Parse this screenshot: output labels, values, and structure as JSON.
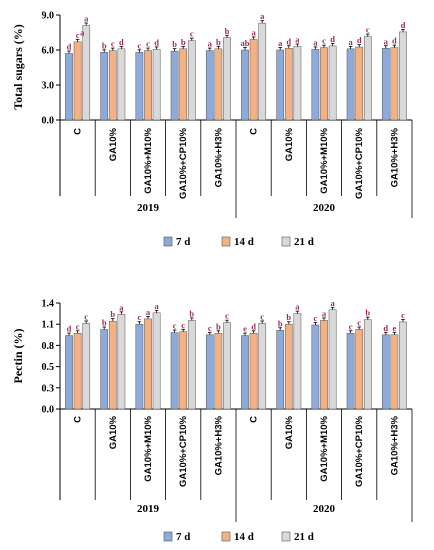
{
  "colors": {
    "7 d": "#8eaadb",
    "14 d": "#f4b183",
    "21 d": "#d9d9d9",
    "letters": "#a0285a"
  },
  "chart_data": [
    {
      "type": "bar",
      "ylabel": "Total sugars (%)",
      "ylim": [
        0,
        9
      ],
      "yticks": [
        "0.0",
        "3.0",
        "6.0",
        "9.0"
      ],
      "tick_values": [
        0,
        3,
        6,
        9
      ],
      "legend": [
        "7 d",
        "14 d",
        "21 d"
      ],
      "legend_position": "bottom",
      "groups": [
        {
          "year": "2019",
          "categories": [
            "C",
            "GA10%",
            "GA10%+M10%",
            "GA10%+CP10%",
            "GA10%+H3%"
          ]
        },
        {
          "year": "2020",
          "categories": [
            "C",
            "GA10%",
            "GA10%+M10%",
            "GA10%+CP10%",
            "GA10%+H3%"
          ]
        }
      ],
      "series": [
        {
          "name": "7 d",
          "values": [
            5.7,
            5.8,
            5.8,
            5.9,
            5.95,
            6.0,
            6.0,
            6.05,
            6.1,
            6.15
          ],
          "letters": [
            "d",
            "b",
            "c",
            "b",
            "a",
            "ab",
            "a",
            "a",
            "a",
            "a"
          ]
        },
        {
          "name": "14 d",
          "values": [
            6.7,
            5.95,
            5.95,
            6.1,
            6.1,
            6.9,
            6.15,
            6.2,
            6.25,
            6.2
          ],
          "letters": [
            "c",
            "c",
            "c",
            "b",
            "b",
            "a",
            "d",
            "c",
            "d",
            "d"
          ]
        },
        {
          "name": "21 d",
          "values": [
            8.1,
            6.1,
            6.05,
            6.8,
            7.05,
            8.3,
            6.3,
            6.35,
            7.15,
            7.55
          ],
          "letters": [
            "a",
            "d",
            "d",
            "c",
            "b",
            "a",
            "a",
            "d",
            "c",
            "d"
          ]
        }
      ],
      "extra_letters": [
        {
          "index": 0,
          "text": "a"
        }
      ]
    },
    {
      "type": "bar",
      "ylabel": "Pectin (%)",
      "ylim": [
        0,
        1.4
      ],
      "yticks": [
        "0.0",
        "0.3",
        "0.5",
        "0.8",
        "1.1",
        "1.4"
      ],
      "tick_values": [
        0,
        0.28,
        0.56,
        0.84,
        1.12,
        1.4
      ],
      "legend": [
        "7 d",
        "14 d",
        "21 d"
      ],
      "legend_position": "bottom",
      "groups": [
        {
          "year": "2019",
          "categories": [
            "C",
            "GA10%",
            "GA10%+M10%",
            "GA10%+CP10%",
            "GA10%+H3%"
          ]
        },
        {
          "year": "2020",
          "categories": [
            "C",
            "GA10%",
            "GA10%+M10%",
            "GA10%+CP10%",
            "GA10%+H3%"
          ]
        }
      ],
      "series": [
        {
          "name": "7 d",
          "values": [
            0.97,
            1.05,
            1.12,
            1.01,
            0.98,
            0.97,
            1.04,
            1.11,
            1.0,
            0.98
          ],
          "letters": [
            "d",
            "b",
            "c",
            "c",
            "c",
            "e",
            "b",
            "c",
            "c",
            "d"
          ]
        },
        {
          "name": "14 d",
          "values": [
            1.0,
            1.16,
            1.19,
            1.02,
            1.0,
            1.0,
            1.12,
            1.17,
            1.05,
            0.98
          ],
          "letters": [
            "c",
            "b",
            "a",
            "c",
            "b",
            "d",
            "b",
            "a",
            "c",
            "e"
          ]
        },
        {
          "name": "21 d",
          "values": [
            1.13,
            1.25,
            1.27,
            1.17,
            1.14,
            1.13,
            1.26,
            1.31,
            1.18,
            1.15
          ],
          "letters": [
            "c",
            "a",
            "a",
            "b",
            "c",
            "c",
            "a",
            "a",
            "b",
            "c"
          ]
        }
      ]
    }
  ]
}
